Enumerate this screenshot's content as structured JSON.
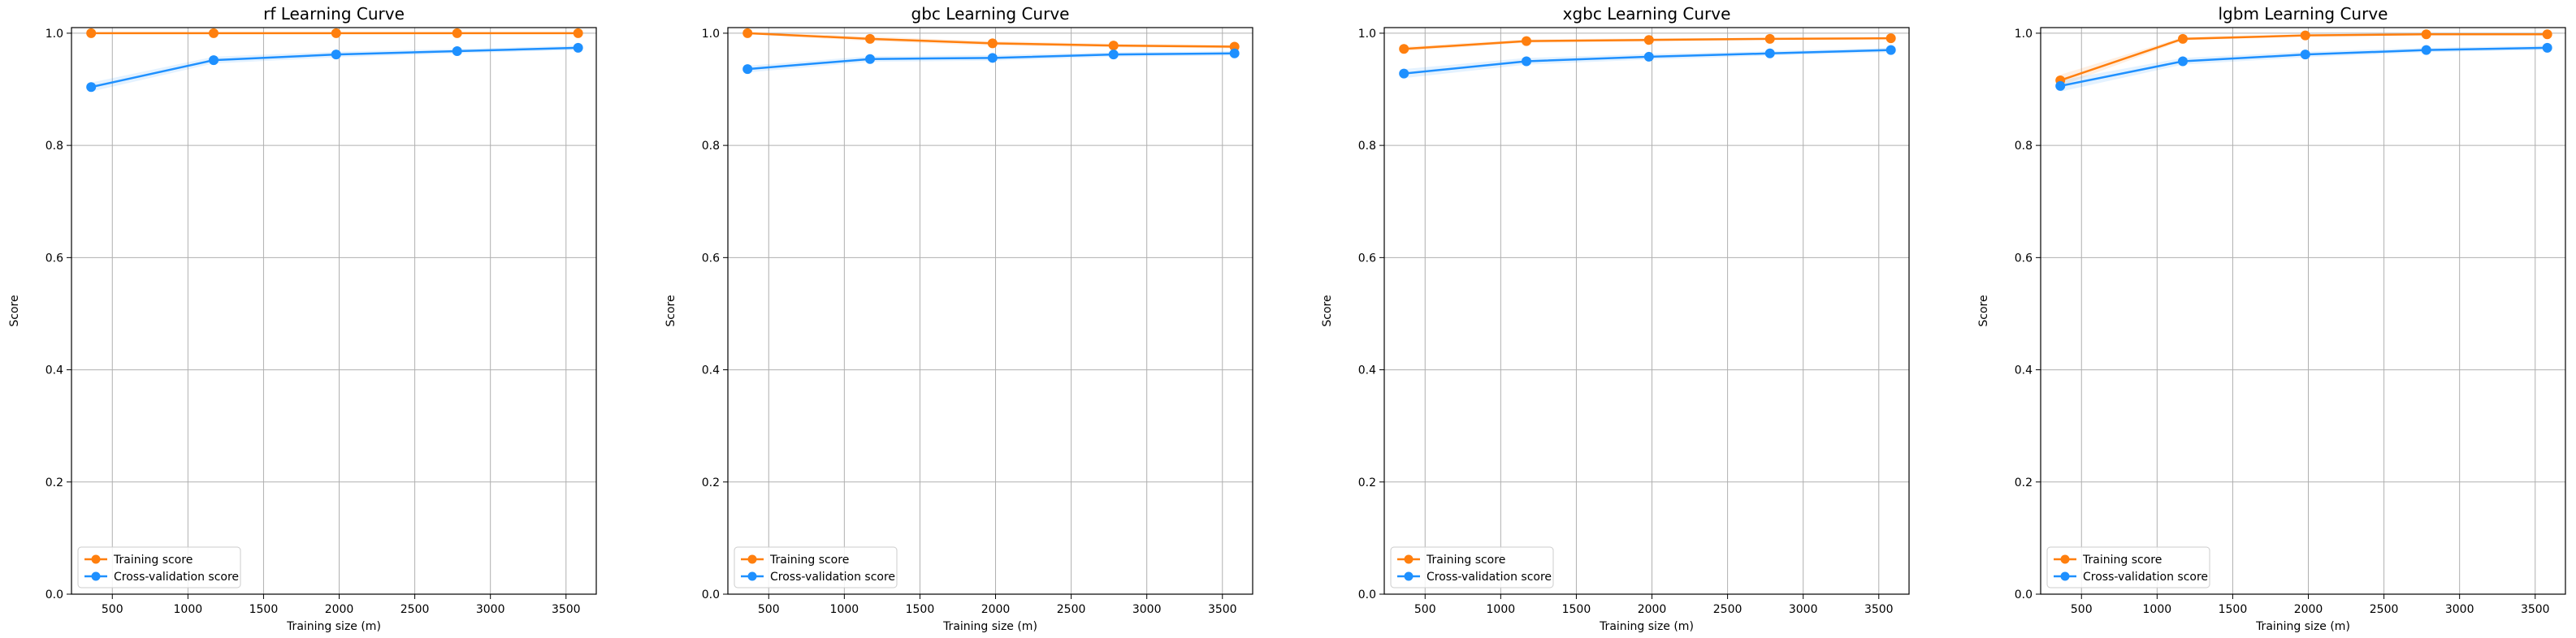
{
  "figure": {
    "colors": {
      "training": "#ff7f0e",
      "cv": "#1e90ff",
      "grid": "#b0b0b0",
      "axis": "#000000"
    }
  },
  "chart_data": [
    {
      "type": "line",
      "title": "rf Learning Curve",
      "xlabel": "Training size (m)",
      "ylabel": "Score",
      "xlim": [
        230,
        3700
      ],
      "ylim": [
        0.0,
        1.01
      ],
      "xticks": [
        500,
        1000,
        1500,
        2000,
        2500,
        3000,
        3500
      ],
      "yticks": [
        0.0,
        0.2,
        0.4,
        0.6,
        0.8,
        1.0
      ],
      "grid": true,
      "legend_position": "lower-left",
      "x": [
        360,
        1170,
        1980,
        2780,
        3580
      ],
      "series": [
        {
          "name": "Training score",
          "color": "#ff7f0e",
          "values": [
            1.0,
            1.0,
            1.0,
            1.0,
            1.0
          ],
          "band": [
            0.0,
            0.0,
            0.0,
            0.0,
            0.0
          ]
        },
        {
          "name": "Cross-validation score",
          "color": "#1e90ff",
          "values": [
            0.904,
            0.952,
            0.962,
            0.968,
            0.974
          ],
          "band": [
            0.008,
            0.006,
            0.005,
            0.004,
            0.004
          ]
        }
      ]
    },
    {
      "type": "line",
      "title": "gbc Learning Curve",
      "xlabel": "Training size (m)",
      "ylabel": "Score",
      "xlim": [
        230,
        3700
      ],
      "ylim": [
        0.0,
        1.01
      ],
      "xticks": [
        500,
        1000,
        1500,
        2000,
        2500,
        3000,
        3500
      ],
      "yticks": [
        0.0,
        0.2,
        0.4,
        0.6,
        0.8,
        1.0
      ],
      "grid": true,
      "legend_position": "lower-left",
      "x": [
        360,
        1170,
        1980,
        2780,
        3580
      ],
      "series": [
        {
          "name": "Training score",
          "color": "#ff7f0e",
          "values": [
            1.0,
            0.99,
            0.982,
            0.978,
            0.976
          ],
          "band": [
            0.002,
            0.004,
            0.004,
            0.003,
            0.003
          ]
        },
        {
          "name": "Cross-validation score",
          "color": "#1e90ff",
          "values": [
            0.936,
            0.954,
            0.956,
            0.962,
            0.964
          ],
          "band": [
            0.006,
            0.005,
            0.005,
            0.004,
            0.004
          ]
        }
      ]
    },
    {
      "type": "line",
      "title": "xgbc Learning Curve",
      "xlabel": "Training size (m)",
      "ylabel": "Score",
      "xlim": [
        230,
        3700
      ],
      "ylim": [
        0.0,
        1.01
      ],
      "xticks": [
        500,
        1000,
        1500,
        2000,
        2500,
        3000,
        3500
      ],
      "yticks": [
        0.0,
        0.2,
        0.4,
        0.6,
        0.8,
        1.0
      ],
      "grid": true,
      "legend_position": "lower-left",
      "x": [
        360,
        1170,
        1980,
        2780,
        3580
      ],
      "series": [
        {
          "name": "Training score",
          "color": "#ff7f0e",
          "values": [
            0.972,
            0.986,
            0.988,
            0.99,
            0.991
          ],
          "band": [
            0.004,
            0.003,
            0.003,
            0.002,
            0.002
          ]
        },
        {
          "name": "Cross-validation score",
          "color": "#1e90ff",
          "values": [
            0.928,
            0.95,
            0.958,
            0.964,
            0.97
          ],
          "band": [
            0.008,
            0.006,
            0.005,
            0.004,
            0.004
          ]
        }
      ]
    },
    {
      "type": "line",
      "title": "lgbm Learning Curve",
      "xlabel": "Training size (m)",
      "ylabel": "Score",
      "xlim": [
        230,
        3700
      ],
      "ylim": [
        0.0,
        1.01
      ],
      "xticks": [
        500,
        1000,
        1500,
        2000,
        2500,
        3000,
        3500
      ],
      "yticks": [
        0.0,
        0.2,
        0.4,
        0.6,
        0.8,
        1.0
      ],
      "grid": true,
      "legend_position": "lower-left",
      "x": [
        360,
        1170,
        1980,
        2780,
        3580
      ],
      "series": [
        {
          "name": "Training score",
          "color": "#ff7f0e",
          "values": [
            0.916,
            0.99,
            0.996,
            0.998,
            0.998
          ],
          "band": [
            0.01,
            0.003,
            0.002,
            0.001,
            0.001
          ]
        },
        {
          "name": "Cross-validation score",
          "color": "#1e90ff",
          "values": [
            0.906,
            0.95,
            0.962,
            0.97,
            0.974
          ],
          "band": [
            0.01,
            0.006,
            0.005,
            0.004,
            0.004
          ]
        }
      ]
    }
  ]
}
